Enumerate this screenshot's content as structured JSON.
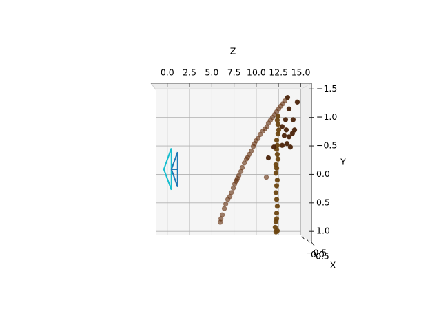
{
  "chart_data": {
    "type": "scatter",
    "xlabel": "Z",
    "ylabel": "Y",
    "zlabel": "X",
    "xlim": [
      -1.3,
      16.2
    ],
    "xticks": [
      {
        "value": 0,
        "label": "0.0"
      },
      2.5,
      {
        "value": 5,
        "label": "5.0"
      },
      7.5,
      {
        "value": 10,
        "label": "10.0"
      },
      12.5,
      {
        "value": 15,
        "label": "15.0"
      }
    ],
    "ylim": [
      1.07,
      -1.6
    ],
    "yticks": [
      {
        "value": -1.5,
        "label": "−1.5"
      },
      {
        "value": -1,
        "label": "−1.0"
      },
      {
        "value": -0.5,
        "label": "−0.5"
      },
      {
        "value": 0,
        "label": "0.0"
      },
      0.5,
      {
        "value": 1,
        "label": "1.0"
      }
    ],
    "zticks": [
      {
        "value": -0.5,
        "label": "−0.5"
      },
      {
        "value": 0,
        "label": "0.0"
      },
      0.5
    ],
    "grid": true,
    "series": [
      {
        "color": "#6b3a1a",
        "alpha": 0.65,
        "x": [
          5.95,
          6.03,
          6.18,
          6.41,
          6.57,
          6.8,
          7.03,
          7.19,
          7.42,
          7.57,
          7.73,
          7.88,
          8.04,
          8.27,
          8.42,
          8.66,
          8.89,
          9.2,
          9.43,
          9.66,
          9.81,
          9.97,
          10.2,
          10.43,
          10.74,
          10.97,
          11.21,
          11.36,
          11.59,
          11.82,
          12.06,
          12.29,
          12.52,
          12.75,
          12.98,
          13.21,
          9.04,
          7.81,
          11.13
        ],
        "values": [
          0.84,
          0.78,
          0.71,
          0.6,
          0.52,
          0.44,
          0.39,
          0.32,
          0.24,
          0.17,
          0.12,
          0.07,
          0.02,
          -0.05,
          -0.12,
          -0.2,
          -0.27,
          -0.35,
          -0.41,
          -0.49,
          -0.54,
          -0.59,
          -0.63,
          -0.7,
          -0.76,
          -0.8,
          -0.84,
          -0.9,
          -0.95,
          -1.0,
          -1.05,
          -1.1,
          -1.15,
          -1.2,
          -1.24,
          -1.29,
          -0.3,
          0.1,
          0.05
        ]
      },
      {
        "color": "#6b4510",
        "alpha": 0.95,
        "x": [
          12.21,
          12.36,
          12.13,
          12.21,
          12.29,
          12.29,
          12.36,
          12.29,
          12.21,
          12.29,
          12.36,
          12.21,
          12.29,
          12.21,
          12.44,
          12.36,
          12.29,
          12.36,
          12.29,
          12.44,
          12.52,
          12.44,
          12.36,
          12.44
        ],
        "values": [
          1.01,
          0.99,
          0.93,
          0.83,
          0.78,
          0.68,
          0.56,
          0.44,
          0.32,
          0.2,
          0.1,
          -0.02,
          -0.11,
          -0.17,
          -0.27,
          -0.35,
          -0.44,
          -0.51,
          -0.6,
          -0.71,
          -0.78,
          -0.88,
          -0.95,
          -1.02
        ]
      },
      {
        "color": "#4a2208",
        "alpha": 0.95,
        "x": [
          12.91,
          13.14,
          13.45,
          13.68,
          14.06,
          14.3,
          14.61,
          13.68,
          13.29,
          13.83,
          12.91,
          11.98,
          11.36,
          13.52,
          14.14,
          13.37
        ],
        "values": [
          -0.84,
          -0.68,
          -0.54,
          -0.66,
          -0.72,
          -0.78,
          -1.27,
          -1.15,
          -0.96,
          -0.48,
          -0.51,
          -0.48,
          -0.29,
          -1.35,
          -0.96,
          -0.78
        ]
      }
    ],
    "lines": [
      {
        "color": "#17becf",
        "x": [
          0.46,
          -0.39,
          0.46,
          0.46
        ],
        "values": [
          -0.46,
          -0.09,
          0.27,
          -0.46
        ]
      },
      {
        "color": "#1f77b4",
        "x": [
          1.16,
          0.46,
          1.16,
          1.16,
          null,
          0.46,
          1.16
        ],
        "values": [
          -0.39,
          -0.09,
          0.22,
          -0.39,
          null,
          -0.09,
          -0.09
        ]
      }
    ]
  }
}
